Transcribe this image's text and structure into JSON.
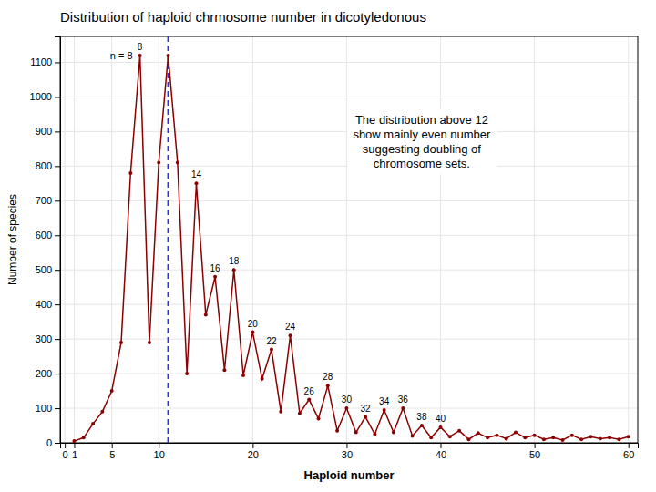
{
  "chart_data": {
    "type": "line",
    "title": "Distribution of haploid chrmosome number in dicotyledonous",
    "x_label": "Haploid number",
    "y_label": "Number of species",
    "x": [
      1,
      2,
      3,
      4,
      5,
      6,
      7,
      8,
      9,
      10,
      11,
      12,
      13,
      14,
      15,
      16,
      17,
      18,
      19,
      20,
      21,
      22,
      23,
      24,
      25,
      26,
      27,
      28,
      29,
      30,
      31,
      32,
      33,
      34,
      35,
      36,
      37,
      38,
      39,
      40,
      41,
      42,
      43,
      44,
      45,
      46,
      47,
      48,
      49,
      50,
      51,
      52,
      53,
      54,
      55,
      56,
      57,
      58,
      59,
      60
    ],
    "series": [
      {
        "color": "#8b0000",
        "marker": "circle",
        "line_style": "solid",
        "values": [
          5,
          15,
          55,
          90,
          150,
          290,
          780,
          1120,
          290,
          810,
          1120,
          810,
          200,
          750,
          370,
          480,
          210,
          500,
          195,
          320,
          185,
          270,
          90,
          310,
          85,
          125,
          70,
          165,
          35,
          100,
          30,
          75,
          25,
          95,
          30,
          100,
          20,
          50,
          15,
          45,
          18,
          35,
          10,
          28,
          15,
          22,
          12,
          30,
          15,
          22,
          10,
          15,
          8,
          22,
          10,
          18,
          12,
          15,
          10,
          18
        ]
      }
    ],
    "reference_lines": [
      {
        "x": 11,
        "color": "#3333cc",
        "line_style": "dashed"
      }
    ],
    "point_labels": [
      {
        "text": "8",
        "x": 8,
        "y": 1120
      },
      {
        "text": "14",
        "x": 14,
        "y": 750
      },
      {
        "text": "16",
        "x": 16,
        "y": 480
      },
      {
        "text": "18",
        "x": 18,
        "y": 500
      },
      {
        "text": "20",
        "x": 20,
        "y": 320
      },
      {
        "text": "22",
        "x": 22,
        "y": 270
      },
      {
        "text": "24",
        "x": 24,
        "y": 310
      },
      {
        "text": "26",
        "x": 26,
        "y": 125
      },
      {
        "text": "28",
        "x": 28,
        "y": 165
      },
      {
        "text": "30",
        "x": 30,
        "y": 100
      },
      {
        "text": "32",
        "x": 32,
        "y": 75
      },
      {
        "text": "34",
        "x": 34,
        "y": 95
      },
      {
        "text": "36",
        "x": 36,
        "y": 100
      },
      {
        "text": "38",
        "x": 38,
        "y": 50
      },
      {
        "text": "40",
        "x": 40,
        "y": 45
      }
    ],
    "annotations": [
      {
        "text": "n = 8",
        "x": 8,
        "y": 1120
      },
      {
        "text": "The distribution above 12\nshow mainly even number\nsuggesting doubling of\nchromosome sets.",
        "x": 38,
        "y": 870
      }
    ],
    "xlim": [
      -0.5,
      61
    ],
    "ylim": [
      0,
      1175
    ],
    "xticks": [
      0,
      1,
      5,
      10,
      20,
      30,
      40,
      50,
      60
    ],
    "yticks": [
      0,
      100,
      200,
      300,
      400,
      500,
      600,
      700,
      800,
      900,
      1000,
      1100
    ],
    "grid": true
  }
}
